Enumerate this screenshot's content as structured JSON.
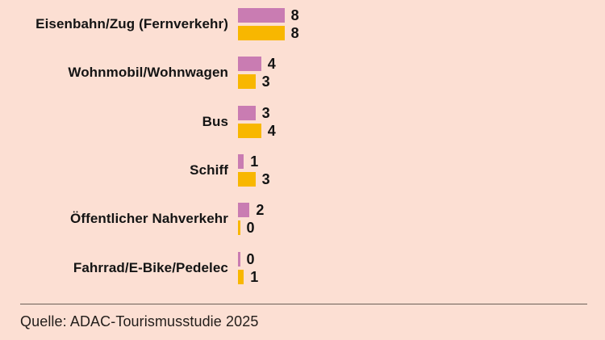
{
  "background_color": "#fcdfd3",
  "chart_data": {
    "type": "bar",
    "orientation": "horizontal",
    "categories": [
      "Eisenbahn/Zug (Fernverkehr)",
      "Wohnmobil/Wohnwagen",
      "Bus",
      "Schiff",
      "Öffentlicher Nahverkehr",
      "Fahrrad/E-Bike/Pedelec"
    ],
    "series": [
      {
        "name": "pink",
        "color": "#c97cb2",
        "values": [
          8,
          4,
          3,
          1,
          2,
          0
        ]
      },
      {
        "name": "yellow",
        "color": "#f8b700",
        "values": [
          8,
          3,
          4,
          3,
          0,
          1
        ]
      }
    ],
    "xlim": [
      0,
      8
    ],
    "value_labels_shown": true,
    "legend": "none",
    "grid": "off",
    "title": ""
  },
  "footer": {
    "source": "Quelle: ADAC-Tourismusstudie 2025"
  }
}
